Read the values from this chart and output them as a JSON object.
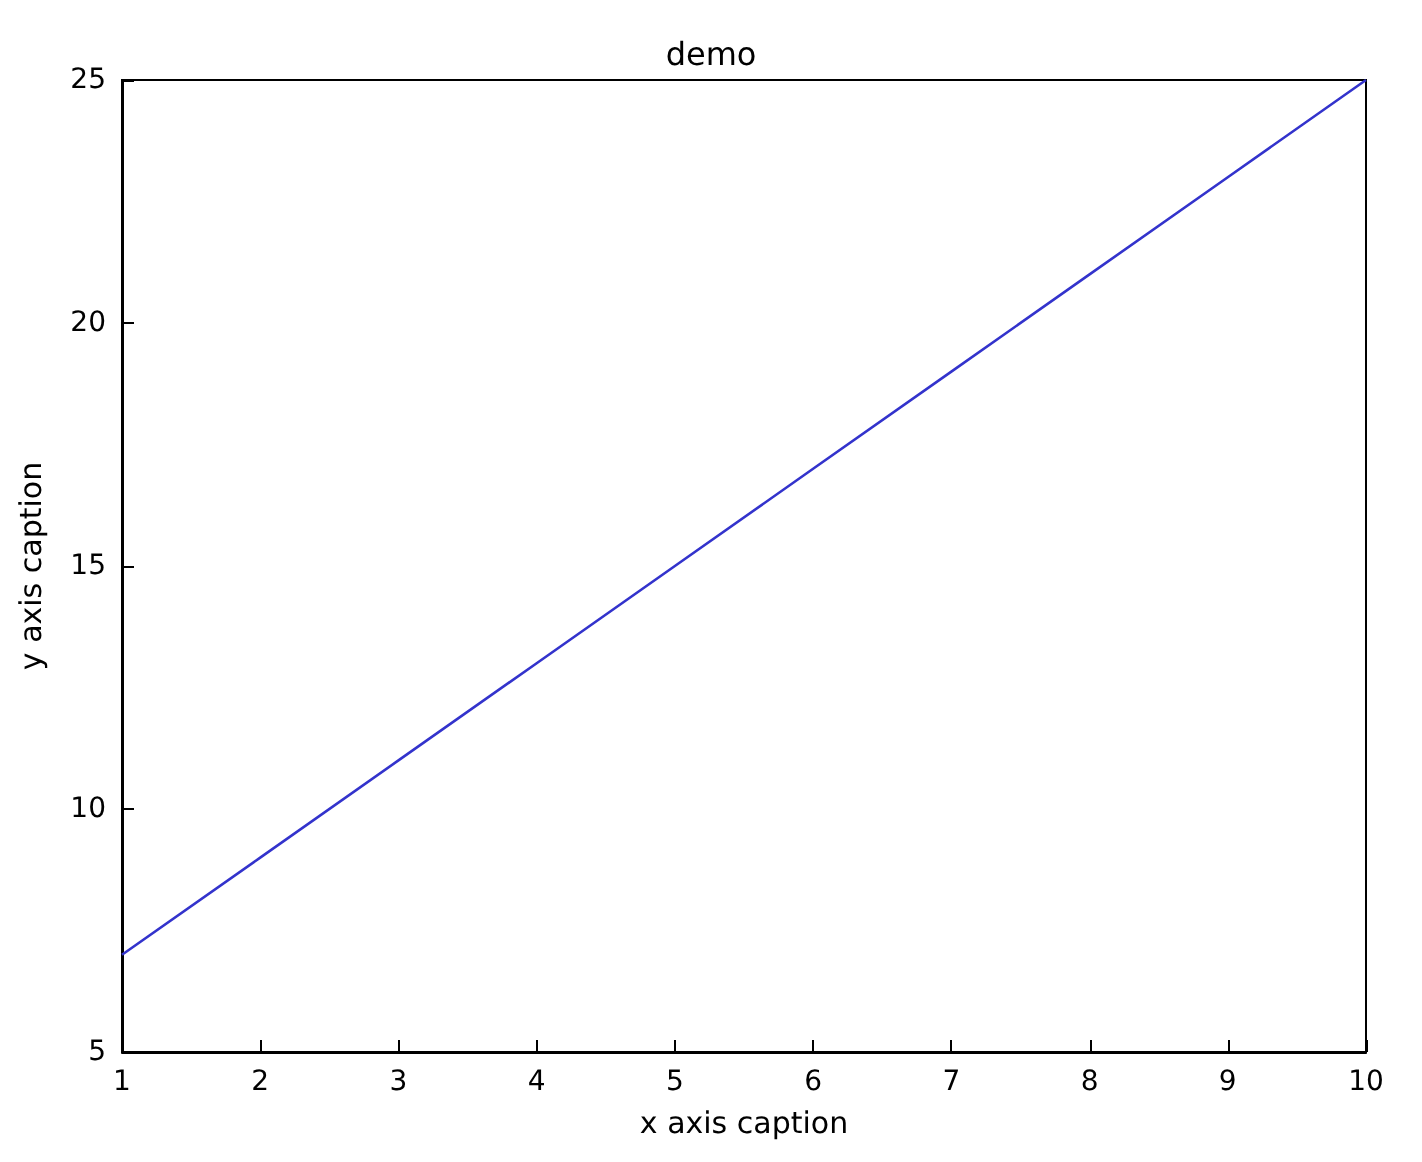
{
  "chart_data": {
    "type": "line",
    "title": "demo",
    "xlabel": "x axis caption",
    "ylabel": "y axis caption",
    "x": [
      1,
      2,
      3,
      4,
      5,
      6,
      7,
      8,
      9,
      10
    ],
    "series": [
      {
        "color": "#3333cc",
        "values": [
          7,
          9,
          11,
          13,
          15,
          17,
          19,
          21,
          23,
          25
        ]
      }
    ],
    "xlim": [
      1,
      10
    ],
    "xticks": [
      1,
      2,
      3,
      4,
      5,
      6,
      7,
      8,
      9,
      10
    ],
    "ylim": [
      5,
      25
    ],
    "yticks": [
      5,
      10,
      15,
      20,
      25
    ],
    "grid": false,
    "marker": "none",
    "line_style": "solid"
  }
}
